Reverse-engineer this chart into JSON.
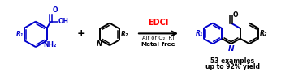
{
  "bg_color": "#ffffff",
  "blue": "#0000cc",
  "red": "#ff0000",
  "black": "#000000",
  "arrow_label_top": "EDCI",
  "arrow_label_bottom1": "Air or O₂, RT",
  "arrow_label_bottom2": "Metal-free",
  "product_label1": "53 examples",
  "product_label2": "up to 92% yield",
  "plus_sign": "+",
  "R1": "R₁",
  "OH": "OH",
  "NH2": "NH₂",
  "O_label": "O",
  "R2": "R₂",
  "N_label": "N",
  "figsize": [
    3.78,
    0.89
  ],
  "dpi": 100
}
